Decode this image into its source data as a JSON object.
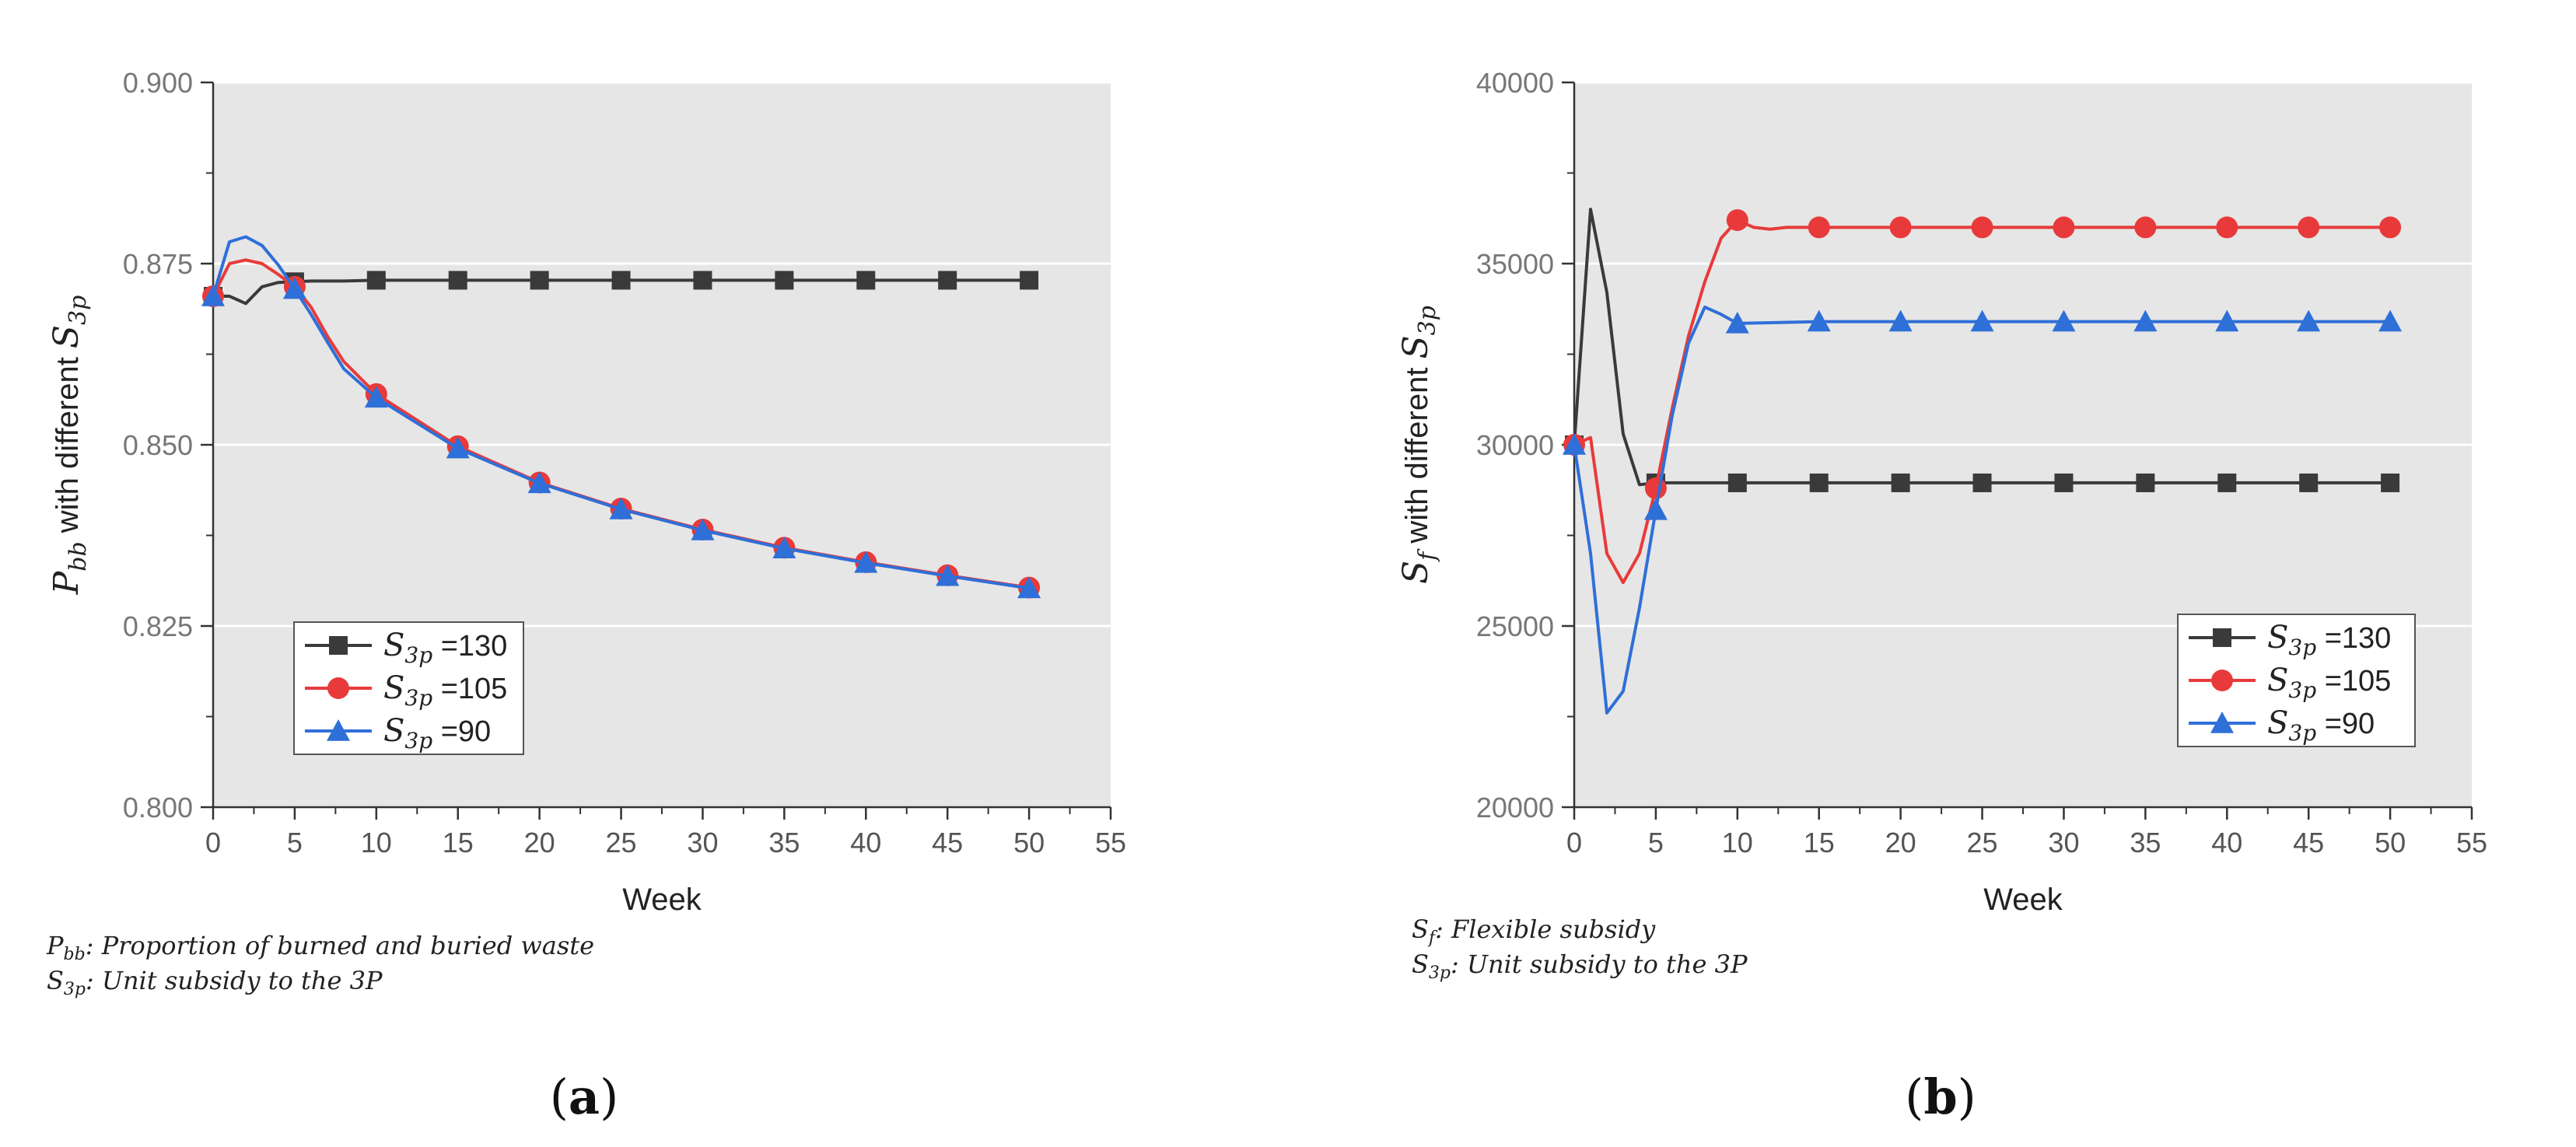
{
  "chart_data": [
    {
      "panel_label": "(a)",
      "type": "line",
      "xlabel": "Week",
      "ylabel": {
        "var": "P",
        "sub": "bb",
        "text": " with different ",
        "var2": "S",
        "sub2": "3p"
      },
      "xlim": [
        0,
        55
      ],
      "ylim": [
        0.8,
        0.9
      ],
      "xticks": [
        0,
        5,
        10,
        15,
        20,
        25,
        30,
        35,
        40,
        45,
        50,
        55
      ],
      "yticks": [
        0.8,
        0.825,
        0.85,
        0.875,
        0.9
      ],
      "ytick_labels": [
        "0.800",
        "0.825",
        "0.850",
        "0.875",
        "0.900"
      ],
      "grid": true,
      "legend_position": "bottom-left",
      "footnotes": [
        {
          "var": "P",
          "sub": "bb",
          "text": ": Proportion of burned and buried waste"
        },
        {
          "var": "S",
          "sub": "3p",
          "text": ": Unit subsidy to the 3P"
        }
      ],
      "series": [
        {
          "name": "S3p =130",
          "legend_var": "S",
          "legend_sub": "3p",
          "legend_value": " =130",
          "color": "#3a3a3a",
          "marker": "square",
          "x": [
            0,
            1,
            2,
            3,
            4,
            5,
            6,
            7,
            8,
            10,
            15,
            20,
            25,
            30,
            35,
            40,
            45,
            50
          ],
          "y": [
            0.8705,
            0.8705,
            0.8695,
            0.8718,
            0.8724,
            0.8725,
            0.8726,
            0.8726,
            0.8726,
            0.8727,
            0.8727,
            0.8727,
            0.8727,
            0.8727,
            0.8727,
            0.8727,
            0.8727,
            0.8727
          ],
          "marker_x": [
            0,
            5,
            10,
            15,
            20,
            25,
            30,
            35,
            40,
            45,
            50
          ]
        },
        {
          "name": "S3p =105",
          "legend_var": "S",
          "legend_sub": "3p",
          "legend_value": " =105",
          "color": "#e83a3a",
          "marker": "circle",
          "x": [
            0,
            1,
            2,
            3,
            4,
            5,
            6,
            7,
            8,
            10,
            15,
            20,
            25,
            30,
            35,
            40,
            45,
            50
          ],
          "y": [
            0.8705,
            0.875,
            0.8755,
            0.875,
            0.8735,
            0.8718,
            0.869,
            0.865,
            0.8615,
            0.857,
            0.8498,
            0.8448,
            0.8412,
            0.8383,
            0.8358,
            0.8338,
            0.832,
            0.8303
          ],
          "marker_x": [
            0,
            5,
            10,
            15,
            20,
            25,
            30,
            35,
            40,
            45,
            50
          ]
        },
        {
          "name": "S3p =90",
          "legend_var": "S",
          "legend_sub": "3p",
          "legend_value": " =90",
          "color": "#2f6fd8",
          "marker": "triangle",
          "x": [
            0,
            1,
            2,
            3,
            4,
            5,
            6,
            7,
            8,
            10,
            15,
            20,
            25,
            30,
            35,
            40,
            45,
            50
          ],
          "y": [
            0.8705,
            0.878,
            0.8787,
            0.8775,
            0.8748,
            0.8715,
            0.868,
            0.8642,
            0.8605,
            0.8565,
            0.8495,
            0.8447,
            0.8411,
            0.8382,
            0.8357,
            0.8337,
            0.8319,
            0.8302
          ],
          "marker_x": [
            0,
            5,
            10,
            15,
            20,
            25,
            30,
            35,
            40,
            45,
            50
          ]
        }
      ]
    },
    {
      "panel_label": "(b)",
      "type": "line",
      "xlabel": "Week",
      "ylabel": {
        "var": "S",
        "sub": "f",
        "text": " with different ",
        "var2": "S",
        "sub2": "3p"
      },
      "xlim": [
        0,
        55
      ],
      "ylim": [
        20000,
        40000
      ],
      "xticks": [
        0,
        5,
        10,
        15,
        20,
        25,
        30,
        35,
        40,
        45,
        50,
        55
      ],
      "yticks": [
        20000,
        25000,
        30000,
        35000,
        40000
      ],
      "ytick_labels": [
        "20000",
        "25000",
        "30000",
        "35000",
        "40000"
      ],
      "grid": true,
      "legend_position": "right-middle",
      "footnotes": [
        {
          "var": "S",
          "sub": "f",
          "text": ": Flexible subsidy"
        },
        {
          "var": "S",
          "sub": "3p",
          "text": ": Unit subsidy to the 3P"
        }
      ],
      "series": [
        {
          "name": "S3p =130",
          "legend_var": "S",
          "legend_sub": "3p",
          "legend_value": " =130",
          "color": "#3a3a3a",
          "marker": "square",
          "x": [
            0,
            1,
            2,
            3,
            4,
            5,
            10,
            15,
            20,
            25,
            30,
            35,
            40,
            45,
            50
          ],
          "y": [
            30000,
            36500,
            34200,
            30300,
            28900,
            28950,
            28950,
            28950,
            28950,
            28950,
            28950,
            28950,
            28950,
            28950,
            28950
          ],
          "marker_x": [
            0,
            5,
            10,
            15,
            20,
            25,
            30,
            35,
            40,
            45,
            50
          ]
        },
        {
          "name": "S3p =105",
          "legend_var": "S",
          "legend_sub": "3p",
          "legend_value": " =105",
          "color": "#e83a3a",
          "marker": "circle",
          "x": [
            0,
            1,
            2,
            3,
            4,
            5,
            6,
            7,
            8,
            9,
            10,
            11,
            12,
            13,
            15,
            20,
            25,
            30,
            35,
            40,
            45,
            50
          ],
          "y": [
            30000,
            30200,
            27000,
            26200,
            27000,
            28800,
            31000,
            33000,
            34500,
            35700,
            36200,
            36000,
            35950,
            36000,
            36000,
            36000,
            36000,
            36000,
            36000,
            36000,
            36000,
            36000
          ],
          "marker_x": [
            0,
            5,
            10,
            15,
            20,
            25,
            30,
            35,
            40,
            45,
            50
          ]
        },
        {
          "name": "S3p =90",
          "legend_var": "S",
          "legend_sub": "3p",
          "legend_value": " =90",
          "color": "#2f6fd8",
          "marker": "triangle",
          "x": [
            0,
            1,
            2,
            3,
            4,
            5,
            6,
            7,
            8,
            9,
            10,
            15,
            20,
            25,
            30,
            35,
            40,
            45,
            50
          ],
          "y": [
            30000,
            27000,
            22600,
            23200,
            25500,
            28200,
            30800,
            32800,
            33800,
            33600,
            33350,
            33400,
            33400,
            33400,
            33400,
            33400,
            33400,
            33400,
            33400
          ],
          "marker_x": [
            0,
            5,
            10,
            15,
            20,
            25,
            30,
            35,
            40,
            45,
            50
          ]
        }
      ]
    }
  ]
}
